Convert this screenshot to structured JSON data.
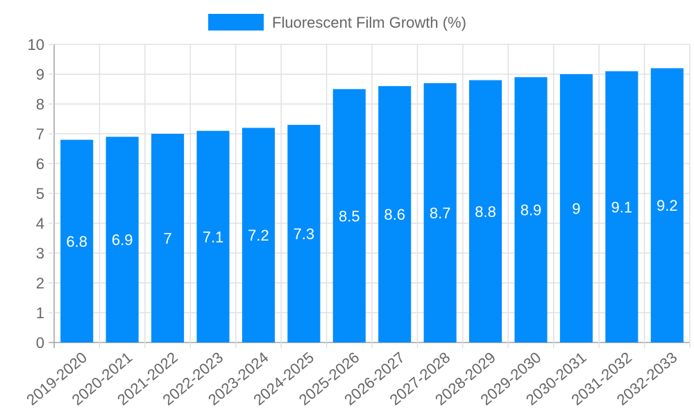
{
  "legend": {
    "label": "Fluorescent Film Growth (%)",
    "color": "#038cfc"
  },
  "colors": {
    "bar": "#038cfc",
    "grid": "#e0e0e0",
    "axis": "#a0a0a0",
    "tick_text": "#666666",
    "bar_label": "#ffffff"
  },
  "chart_data": {
    "type": "bar",
    "title": "",
    "xlabel": "",
    "ylabel": "",
    "categories": [
      "2019-2020",
      "2020-2021",
      "2021-2022",
      "2022-2023",
      "2023-2024",
      "2024-2025",
      "2025-2026",
      "2026-2027",
      "2027-2028",
      "2028-2029",
      "2029-2030",
      "2030-2031",
      "2031-2032",
      "2032-2033"
    ],
    "series": [
      {
        "name": "Fluorescent Film Growth (%)",
        "values": [
          6.8,
          6.9,
          7,
          7.1,
          7.2,
          7.3,
          8.5,
          8.6,
          8.7,
          8.8,
          8.9,
          9,
          9.1,
          9.2
        ]
      }
    ],
    "ylim": [
      0,
      10
    ],
    "yticks": [
      0,
      1,
      2,
      3,
      4,
      5,
      6,
      7,
      8,
      9,
      10
    ],
    "grid": true,
    "legend_position": "top",
    "data_labels": true
  }
}
